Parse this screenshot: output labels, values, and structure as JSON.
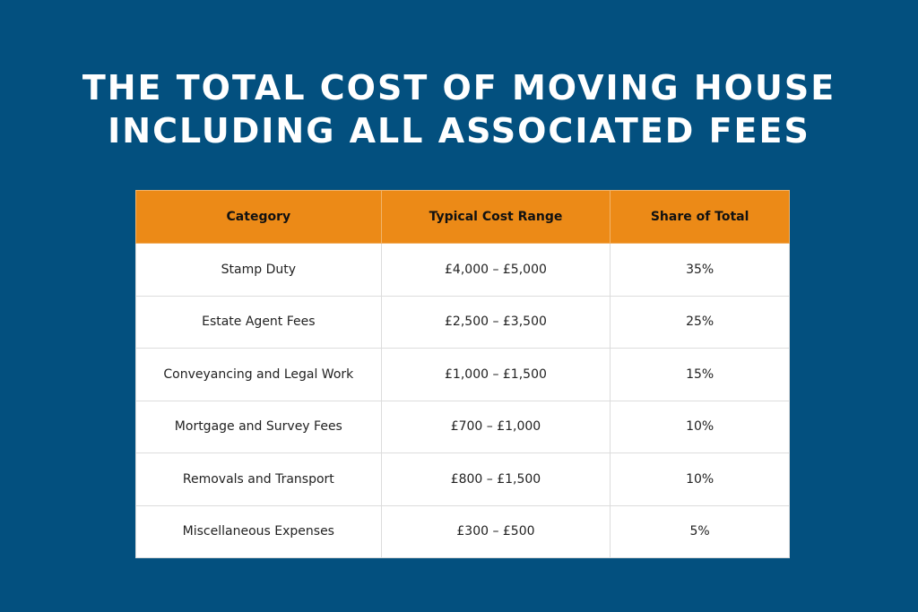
{
  "title_lines": [
    "THE TOTAL COST OF MOVING HOUSE",
    "INCLUDING ALL ASSOCIATED FEES"
  ],
  "colors": {
    "background": "#03507f",
    "header": "#ec8a17"
  },
  "table": {
    "headers": [
      "Category",
      "Typical Cost Range",
      "Share of Total"
    ],
    "rows": [
      [
        "Stamp Duty",
        "£4,000 – £5,000",
        "35%"
      ],
      [
        "Estate Agent Fees",
        "£2,500 – £3,500",
        "25%"
      ],
      [
        "Conveyancing and Legal Work",
        "£1,000 – £1,500",
        "15%"
      ],
      [
        "Mortgage and Survey Fees",
        "£700 – £1,000",
        "10%"
      ],
      [
        "Removals and Transport",
        "£800 – £1,500",
        "10%"
      ],
      [
        "Miscellaneous Expenses",
        "£300 – £500",
        "5%"
      ]
    ]
  }
}
